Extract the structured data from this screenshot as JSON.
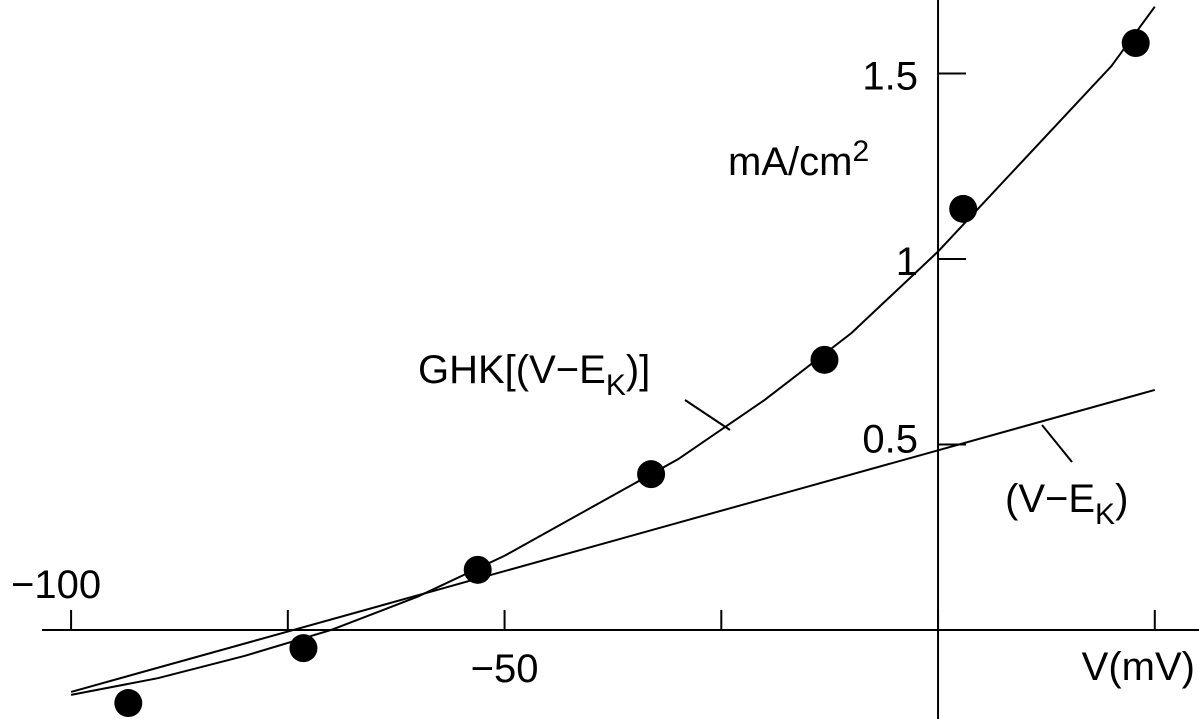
{
  "chart_data": {
    "type": "scatter",
    "x_label": "V(mV)",
    "y_label": {
      "text": "mA/cm",
      "sup": "2"
    },
    "xlim": [
      -108.2,
      30.1
    ],
    "ylim": [
      -0.24,
      1.698
    ],
    "xticks": [
      -100,
      -75,
      -50,
      -25,
      0,
      25
    ],
    "xtick_labels": [
      {
        "value": -100,
        "label": "−100"
      },
      {
        "value": -50,
        "label": "−50"
      }
    ],
    "yticks": [
      0.5,
      1,
      1.5
    ],
    "color": "#000000",
    "points": {
      "x": [
        -93.4,
        -73.2,
        -53.1,
        -33.1,
        -13.1,
        2.9,
        22.8
      ],
      "values": [
        -0.197,
        -0.049,
        0.162,
        0.42,
        0.728,
        1.135,
        1.582
      ]
    },
    "series": [
      {
        "name": {
          "text": "GHK[(V−E",
          "sub": "K",
          "tail": ")]"
        },
        "x": [
          -100,
          -90,
          -80,
          -70,
          -60,
          -50,
          -40,
          -30,
          -20,
          -10,
          0,
          10,
          20,
          25
        ],
        "values": [
          -0.175,
          -0.13,
          -0.07,
          0,
          0.09,
          0.2,
          0.33,
          0.46,
          0.62,
          0.8,
          1.02,
          1.27,
          1.52,
          1.68
        ]
      },
      {
        "name": {
          "text": "(V−E",
          "sub": "K",
          "tail": ")"
        },
        "x": [
          -100,
          25
        ],
        "values": [
          -0.167,
          0.647
        ]
      }
    ]
  }
}
